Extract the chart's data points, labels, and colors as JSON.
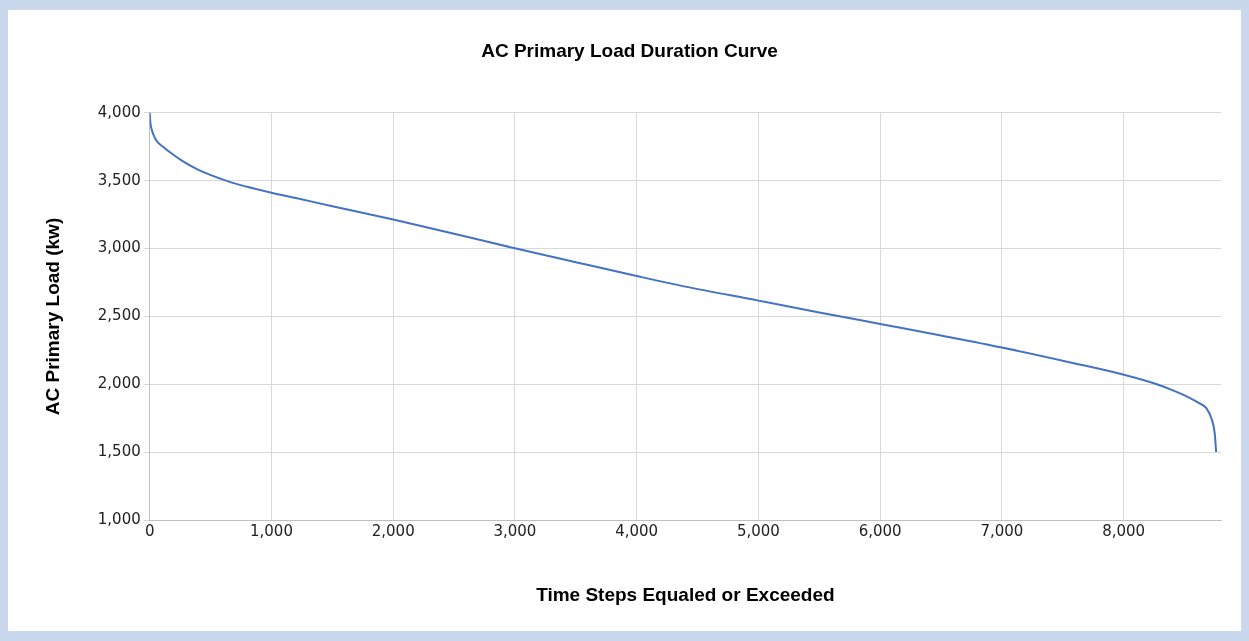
{
  "chart_data": {
    "type": "line",
    "title": "AC Primary Load Duration Curve",
    "xlabel": "Time Steps Equaled or Exceeded",
    "ylabel": "AC Primary Load (kw)",
    "x": [
      0,
      5,
      15,
      30,
      60,
      109,
      180,
      277,
      400,
      639,
      800,
      1000,
      1200,
      1500,
      2000,
      2500,
      3000,
      3500,
      4000,
      4400,
      5000,
      5500,
      6000,
      6500,
      7000,
      7563,
      8017,
      8261,
      8400,
      8538,
      8620,
      8681,
      8723,
      8748,
      8760
    ],
    "series": [
      {
        "color": "#4472c4",
        "values": [
          4000,
          3930,
          3880,
          3840,
          3790,
          3750,
          3700,
          3640,
          3580,
          3497,
          3455,
          3411,
          3372,
          3312,
          3214,
          3110,
          3002,
          2900,
          2798,
          2720,
          2617,
          2530,
          2445,
          2360,
          2272,
          2162,
          2068,
          2005,
          1958,
          1903,
          1862,
          1824,
          1745,
          1643,
          1502
        ]
      }
    ],
    "xlim": [
      0,
      8800
    ],
    "xticks": [
      0,
      {
        "value": 1000,
        "label": "1,000"
      },
      {
        "value": 2000,
        "label": "2,000"
      },
      {
        "value": 3000,
        "label": "3,000"
      },
      {
        "value": 4000,
        "label": "4,000"
      },
      {
        "value": 5000,
        "label": "5,000"
      },
      {
        "value": 6000,
        "label": "6,000"
      },
      {
        "value": 7000,
        "label": "7,000"
      },
      {
        "value": 8000,
        "label": "8,000"
      }
    ],
    "ylim": [
      1000,
      4000
    ],
    "yticks": [
      {
        "value": 1000,
        "label": "1,000"
      },
      {
        "value": 1500,
        "label": "1,500"
      },
      {
        "value": 2000,
        "label": "2,000"
      },
      {
        "value": 2500,
        "label": "2,500"
      },
      {
        "value": 3000,
        "label": "3,000"
      },
      {
        "value": 3500,
        "label": "3,500"
      },
      {
        "value": 4000,
        "label": "4,000"
      }
    ],
    "grid": true,
    "legend": false,
    "marker": "none",
    "line_style": "solid"
  }
}
